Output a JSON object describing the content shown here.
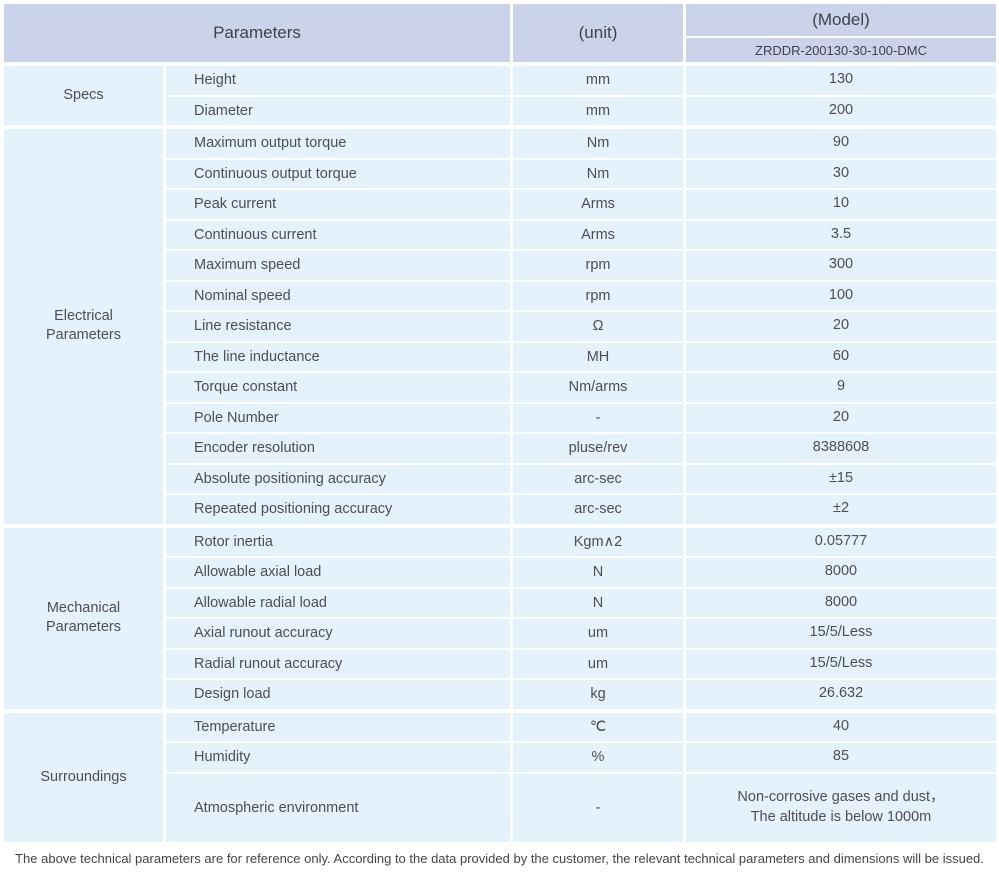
{
  "table": {
    "header": {
      "parameters": "Parameters",
      "unit": "(unit)",
      "model": "(Model)",
      "model_code": "ZRDDR-200130-30-100-DMC"
    },
    "sections": [
      {
        "label": "Specs",
        "rows": [
          {
            "param": "Height",
            "unit": "mm",
            "value": "130"
          },
          {
            "param": "Diameter",
            "unit": "mm",
            "value": "200"
          }
        ]
      },
      {
        "label": "Electrical\nParameters",
        "rows": [
          {
            "param": "Maximum output torque",
            "unit": "Nm",
            "value": "90"
          },
          {
            "param": "Continuous output torque",
            "unit": "Nm",
            "value": "30"
          },
          {
            "param": "Peak current",
            "unit": "Arms",
            "value": "10"
          },
          {
            "param": "Continuous current",
            "unit": "Arms",
            "value": "3.5"
          },
          {
            "param": "Maximum speed",
            "unit": "rpm",
            "value": "300"
          },
          {
            "param": "Nominal speed",
            "unit": "rpm",
            "value": "100"
          },
          {
            "param": "Line resistance",
            "unit": "Ω",
            "value": "20"
          },
          {
            "param": "The line inductance",
            "unit": "MH",
            "value": "60"
          },
          {
            "param": "Torque constant",
            "unit": "Nm/arms",
            "value": "9"
          },
          {
            "param": "Pole Number",
            "unit": "-",
            "value": "20"
          },
          {
            "param": "Encoder resolution",
            "unit": "pluse/rev",
            "value": "8388608"
          },
          {
            "param": "Absolute positioning accuracy",
            "unit": "arc-sec",
            "value": "±15"
          },
          {
            "param": "Repeated positioning accuracy",
            "unit": "arc-sec",
            "value": "±2"
          }
        ]
      },
      {
        "label": "Mechanical\nParameters",
        "rows": [
          {
            "param": "Rotor inertia",
            "unit": "Kgm∧2",
            "value": "0.05777"
          },
          {
            "param": "Allowable axial load",
            "unit": "N",
            "value": "8000"
          },
          {
            "param": "Allowable radial load",
            "unit": "N",
            "value": "8000"
          },
          {
            "param": "Axial runout accuracy",
            "unit": "um",
            "value": "15/5/Less"
          },
          {
            "param": "Radial runout accuracy",
            "unit": "um",
            "value": "15/5/Less"
          },
          {
            "param": "Design load",
            "unit": "kg",
            "value": "26.632"
          }
        ]
      },
      {
        "label": "Surroundings",
        "rows": [
          {
            "param": "Temperature",
            "unit": "℃",
            "value": "40"
          },
          {
            "param": "Humidity",
            "unit": "%",
            "value": "85"
          },
          {
            "param": "Atmospheric environment",
            "unit": "-",
            "value": "Non-corrosive gases and dust，\nThe altitude is below 1000m"
          }
        ]
      }
    ]
  },
  "footer": {
    "note": "The above technical parameters are for reference only. According to the data provided by the customer, the relevant technical parameters and dimensions will be issued."
  },
  "colors": {
    "header_bg": "#cbd3eb",
    "cell_bg": "#e3f2fb",
    "text": "#4e4e54"
  }
}
